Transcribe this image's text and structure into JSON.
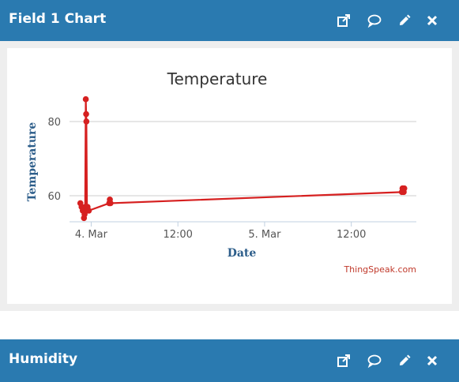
{
  "panels": [
    {
      "title": "Field 1 Chart",
      "icons": [
        "external-link-icon",
        "comment-icon",
        "edit-icon",
        "close-icon"
      ]
    },
    {
      "title": "Humidity",
      "icons": [
        "external-link-icon",
        "comment-icon",
        "edit-icon",
        "close-icon"
      ]
    }
  ],
  "colors": {
    "header_bg": "#2a7ab0",
    "series": "#d62020",
    "credit": "#c0392b",
    "axis_label": "#2c5d8a"
  },
  "chart_data": {
    "type": "line",
    "title": "Temperature",
    "xlabel": "Date",
    "ylabel": "Temperature",
    "x_ticks": [
      {
        "label": "4. Mar",
        "value": "2021-03-04T00:00"
      },
      {
        "label": "12:00",
        "value": "2021-03-04T12:00"
      },
      {
        "label": "5. Mar",
        "value": "2021-03-05T00:00"
      },
      {
        "label": "12:00",
        "value": "2021-03-05T12:00"
      }
    ],
    "y_ticks": [
      60,
      80
    ],
    "xlim": [
      "2021-03-03T21:00",
      "2021-03-05T21:00"
    ],
    "ylim": [
      53,
      87
    ],
    "grid": true,
    "credit": "ThingSpeak.com",
    "series": [
      {
        "points": [
          {
            "x": "2021-03-03T22:30",
            "y": 58
          },
          {
            "x": "2021-03-03T22:40",
            "y": 57
          },
          {
            "x": "2021-03-03T22:50",
            "y": 56
          },
          {
            "x": "2021-03-03T23:00",
            "y": 54
          },
          {
            "x": "2021-03-03T23:05",
            "y": 55
          },
          {
            "x": "2021-03-03T23:10",
            "y": 57
          },
          {
            "x": "2021-03-03T23:15",
            "y": 86
          },
          {
            "x": "2021-03-03T23:18",
            "y": 82
          },
          {
            "x": "2021-03-03T23:20",
            "y": 80
          },
          {
            "x": "2021-03-03T23:25",
            "y": 56
          },
          {
            "x": "2021-03-03T23:30",
            "y": 57
          },
          {
            "x": "2021-03-03T23:40",
            "y": 56
          },
          {
            "x": "2021-03-04T02:30",
            "y": 58
          },
          {
            "x": "2021-03-04T02:35",
            "y": 59
          },
          {
            "x": "2021-03-04T02:40",
            "y": 58
          },
          {
            "x": "2021-03-05T19:00",
            "y": 61
          },
          {
            "x": "2021-03-05T19:05",
            "y": 62
          },
          {
            "x": "2021-03-05T19:10",
            "y": 62
          },
          {
            "x": "2021-03-05T19:15",
            "y": 61
          },
          {
            "x": "2021-03-05T19:20",
            "y": 62
          }
        ]
      }
    ]
  }
}
